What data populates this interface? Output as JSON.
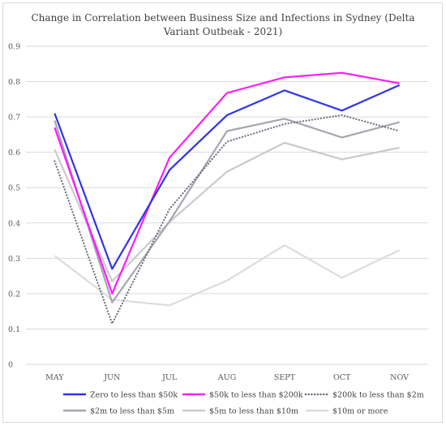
{
  "chart_data": {
    "type": "line",
    "title": "Change in Correlation between Business Size and Infections  in Sydney (Delta Variant Outbeak - 2021)",
    "xlabel": "",
    "ylabel": "",
    "categories": [
      "MAY",
      "JUN",
      "JUL",
      "AUG",
      "SEPT",
      "OCT",
      "NOV"
    ],
    "ylim": [
      0,
      0.9
    ],
    "yticks": [
      "0",
      "0.1",
      "0.2",
      "0.3",
      "0.4",
      "0.5",
      "0.6",
      "0.7",
      "0.8",
      "0.9"
    ],
    "grid": true,
    "legend_position": "bottom",
    "series": [
      {
        "name": "Zero to less than $50k",
        "color": "#2f35e6",
        "style": "solid",
        "width": 2.2,
        "values": [
          0.71,
          0.27,
          0.55,
          0.705,
          0.775,
          0.718,
          0.79
        ]
      },
      {
        "name": "$50k to less than $200k",
        "color": "#ff1aff",
        "style": "solid",
        "width": 2.2,
        "values": [
          0.67,
          0.2,
          0.585,
          0.768,
          0.812,
          0.825,
          0.795
        ]
      },
      {
        "name": "$200k to less than $2m",
        "color": "#6e6e7e",
        "style": "dotted",
        "width": 2.2,
        "values": [
          0.575,
          0.115,
          0.44,
          0.63,
          0.68,
          0.705,
          0.66
        ]
      },
      {
        "name": "$2m to less than $5m",
        "color": "#a6a6ae",
        "style": "solid",
        "width": 2.2,
        "values": [
          0.69,
          0.175,
          0.405,
          0.66,
          0.695,
          0.642,
          0.685
        ]
      },
      {
        "name": "$5m to less than $10m",
        "color": "#c9c9cf",
        "style": "solid",
        "width": 2.2,
        "values": [
          0.608,
          0.235,
          0.403,
          0.545,
          0.627,
          0.58,
          0.613
        ]
      },
      {
        "name": "$10m or more",
        "color": "#dcdcdc",
        "style": "solid",
        "width": 2.2,
        "values": [
          0.307,
          0.183,
          0.167,
          0.237,
          0.337,
          0.245,
          0.323
        ]
      }
    ]
  }
}
